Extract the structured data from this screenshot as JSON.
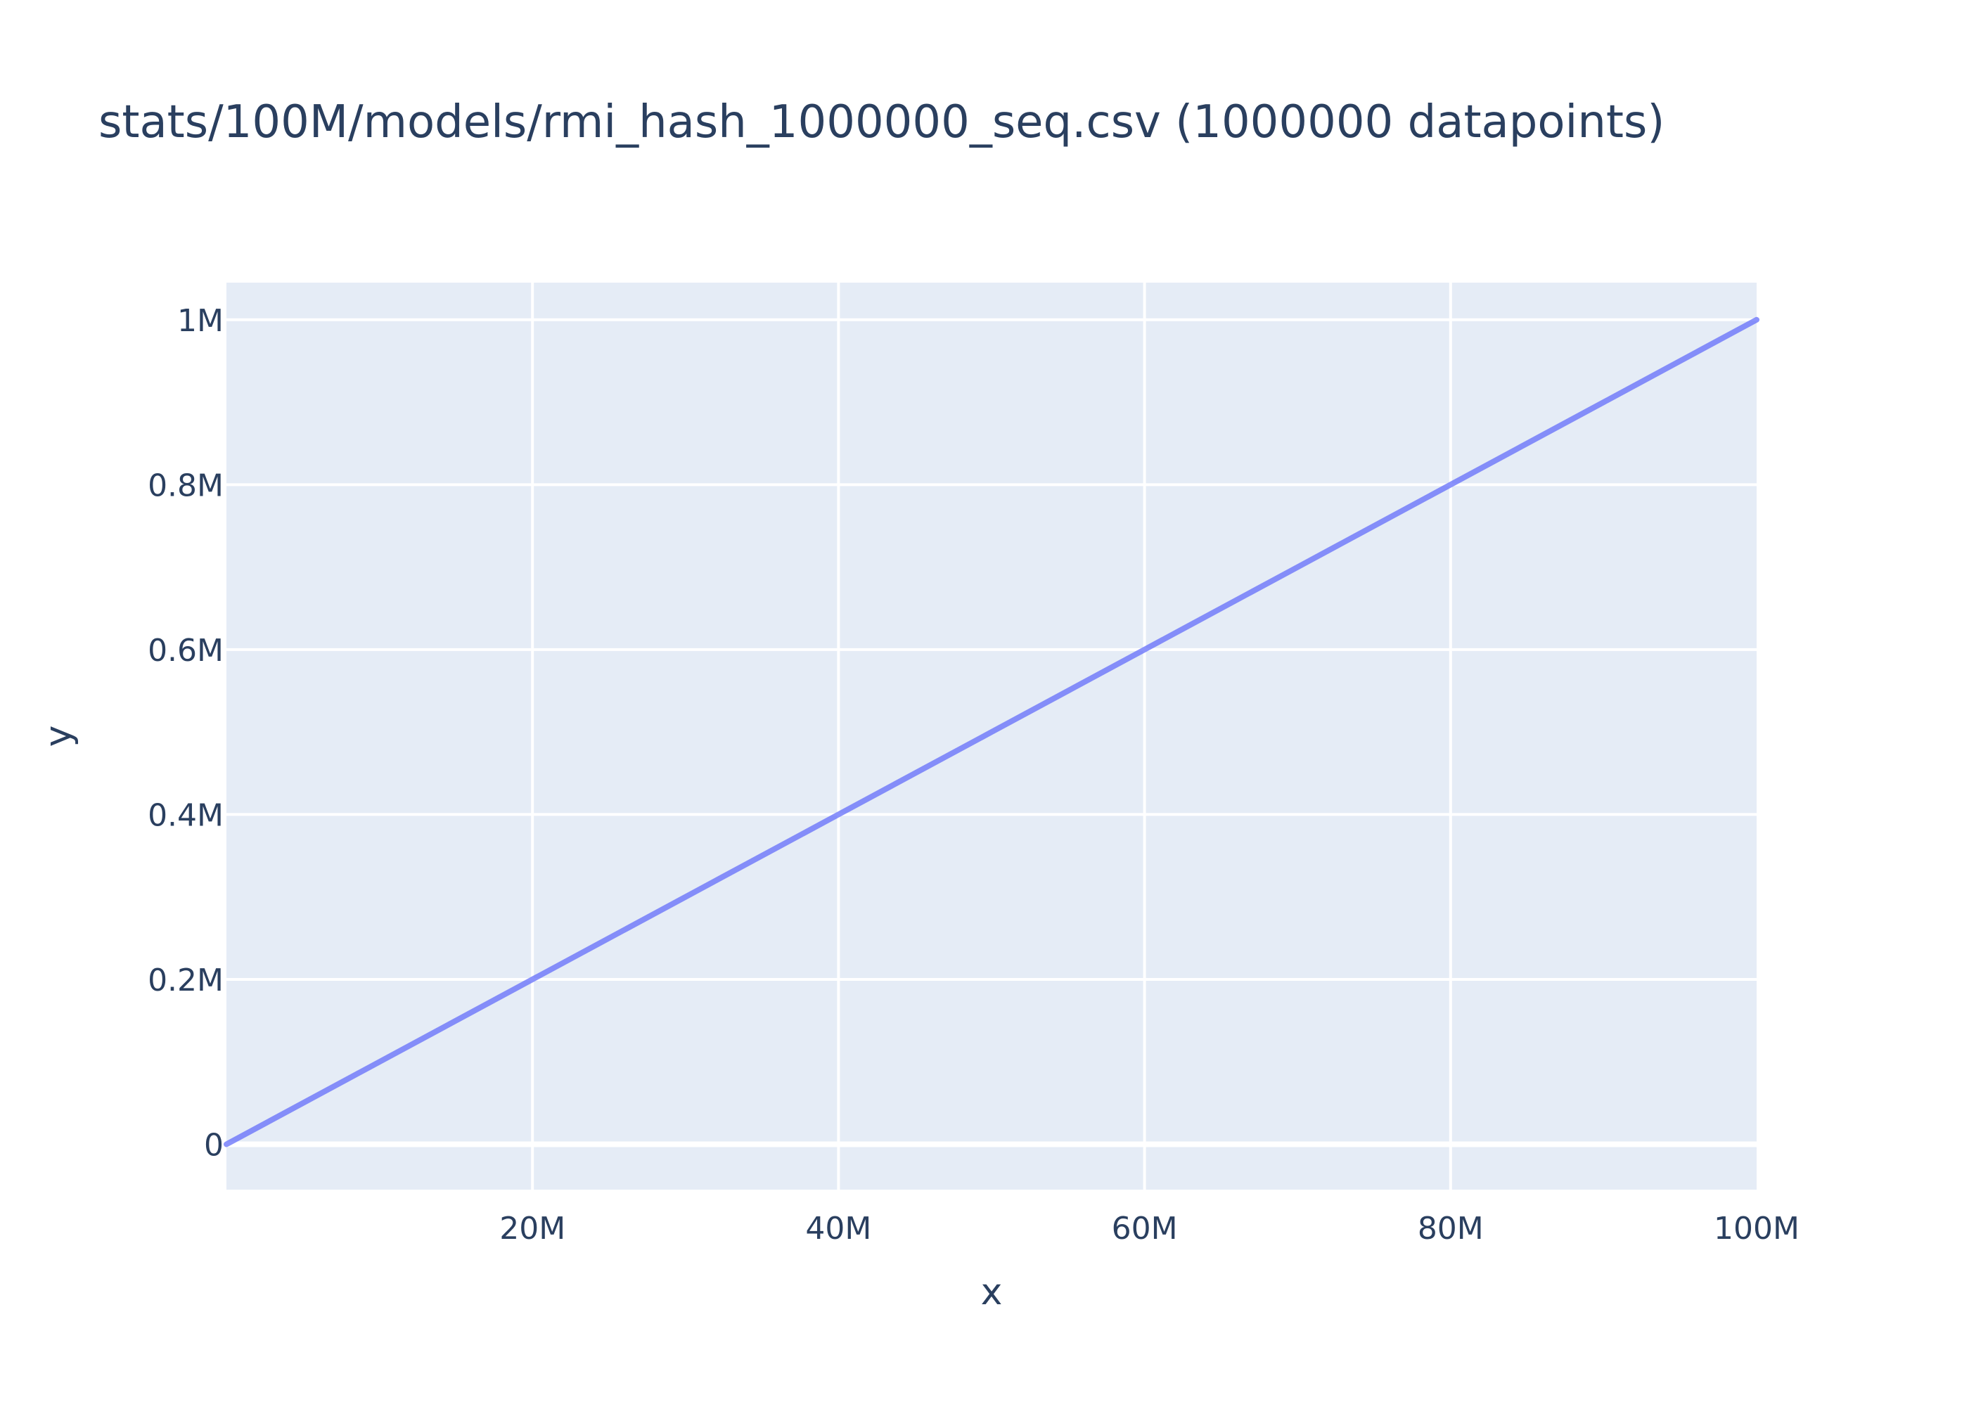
{
  "chart_data": {
    "type": "line",
    "title": "stats/100M/models/rmi_hash_1000000_seq.csv (1000000 datapoints)",
    "xlabel": "x",
    "ylabel": "y",
    "x_range": [
      0,
      100000000
    ],
    "y_range": [
      -55000,
      1045000
    ],
    "x_ticks": [
      {
        "value": 20000000,
        "label": "20M"
      },
      {
        "value": 40000000,
        "label": "40M"
      },
      {
        "value": 60000000,
        "label": "60M"
      },
      {
        "value": 80000000,
        "label": "80M"
      },
      {
        "value": 100000000,
        "label": "100M"
      }
    ],
    "y_ticks": [
      {
        "value": 0,
        "label": "0"
      },
      {
        "value": 200000,
        "label": "0.2M"
      },
      {
        "value": 400000,
        "label": "0.4M"
      },
      {
        "value": 600000,
        "label": "0.6M"
      },
      {
        "value": 800000,
        "label": "0.8M"
      },
      {
        "value": 1000000,
        "label": "1M"
      }
    ],
    "grid": true,
    "legend": "none",
    "series": [
      {
        "color": "#636efa",
        "x": [
          0,
          10000000,
          20000000,
          30000000,
          40000000,
          50000000,
          60000000,
          70000000,
          80000000,
          90000000,
          100000000
        ],
        "y": [
          0,
          100000,
          200000,
          300000,
          400000,
          500000,
          600000,
          700000,
          800000,
          900000,
          1000000
        ]
      }
    ]
  },
  "colors": {
    "plot_background": "#e5ecf6",
    "grid": "#ffffff",
    "text": "#2a3f5f",
    "series": "#636efa"
  }
}
